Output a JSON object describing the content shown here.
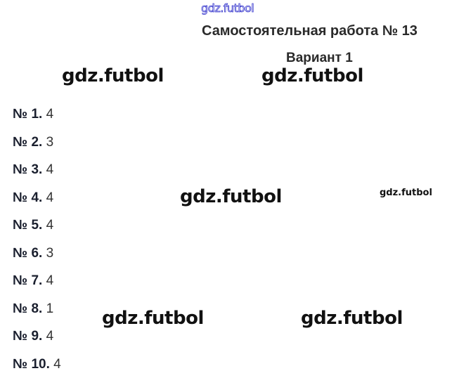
{
  "watermarks": {
    "top": "gdz.futbol",
    "upper_left": "gdz.futbol",
    "upper_right": "gdz.futbol",
    "center": "gdz.futbol",
    "small_right": "gdz.futbol",
    "lower_left": "gdz.futbol",
    "lower_right": "gdz.futbol"
  },
  "document": {
    "title": "Самостоятельная работа № 13",
    "variant": "Вариант 1",
    "answers": [
      {
        "label": "№ 1.",
        "value": "4"
      },
      {
        "label": "№ 2.",
        "value": "3"
      },
      {
        "label": "№ 3.",
        "value": "4"
      },
      {
        "label": "№ 4.",
        "value": "4"
      },
      {
        "label": "№ 5.",
        "value": "4"
      },
      {
        "label": "№ 6.",
        "value": "3"
      },
      {
        "label": "№ 7.",
        "value": "4"
      },
      {
        "label": "№ 8.",
        "value": "1"
      },
      {
        "label": "№ 9.",
        "value": "4"
      },
      {
        "label": "№ 10.",
        "value": "4"
      }
    ]
  },
  "colors": {
    "top_watermark_outline": "#3333cc"
  }
}
